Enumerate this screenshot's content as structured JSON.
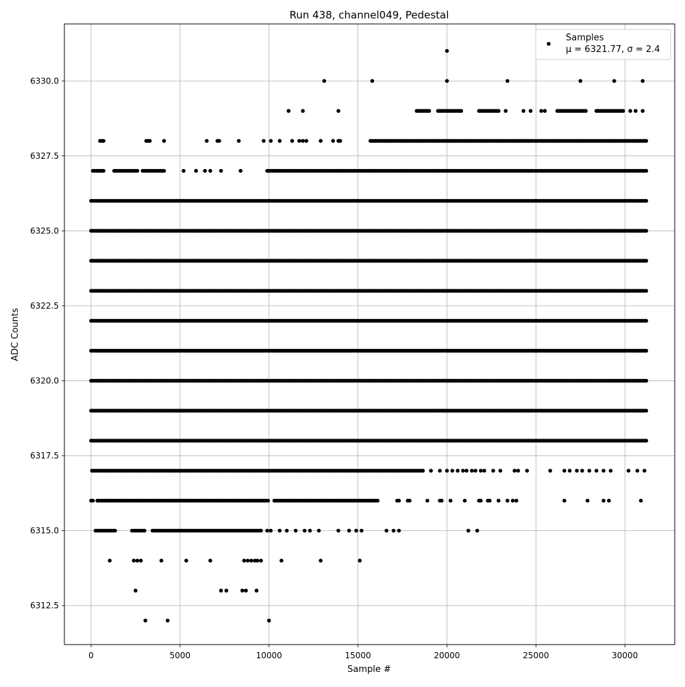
{
  "chart_data": {
    "type": "scatter",
    "title": "Run 438, channel049, Pedestal",
    "xlabel": "Sample #",
    "ylabel": "ADC Counts",
    "xlim": [
      -1500,
      32800
    ],
    "ylim": [
      6311.2,
      6331.9
    ],
    "grid": true,
    "legend_position": "top-right",
    "xticks": [
      0,
      5000,
      10000,
      15000,
      20000,
      25000,
      30000
    ],
    "xtick_labels": [
      "0",
      "5000",
      "10000",
      "15000",
      "20000",
      "25000",
      "30000"
    ],
    "yticks": [
      6312.5,
      6315.0,
      6317.5,
      6320.0,
      6322.5,
      6325.0,
      6327.5,
      6330.0
    ],
    "ytick_labels": [
      "6312.5",
      "6315.0",
      "6317.5",
      "6320.0",
      "6322.5",
      "6325.0",
      "6327.5",
      "6330.0"
    ],
    "series": [
      {
        "name": "Samples",
        "stats_label": "μ = 6321.77, σ = 2.4",
        "mean": 6321.77,
        "sigma": 2.4,
        "color": "#000000",
        "n_samples": 31200,
        "levels": [
          {
            "y": 6312,
            "x": [
              3050,
              4300,
              10000
            ]
          },
          {
            "y": 6313,
            "x": [
              2500,
              7300,
              7600,
              8500,
              8700,
              9300
            ]
          },
          {
            "y": 6314,
            "x": [
              1050,
              2400,
              2600,
              2800,
              3950,
              5350,
              6700,
              8600,
              8800,
              9000,
              9200,
              9350,
              9550,
              10700,
              12900,
              15100
            ]
          },
          {
            "y": 6330,
            "x": [
              13100,
              15800,
              20000,
              23400,
              27500,
              29400,
              31000
            ]
          },
          {
            "y": 6331,
            "x": [
              20000
            ]
          }
        ],
        "bands": [
          {
            "y": 6315,
            "ranges": [
              [
                250,
                1400
              ],
              [
                2300,
                3000
              ],
              [
                3450,
                9600
              ]
            ],
            "extra_x": [
              9900,
              10100,
              10600,
              11000,
              11500,
              12000,
              12300,
              12800,
              13900,
              14500,
              14900,
              15200,
              16600,
              17000,
              17300,
              21200,
              21700
            ]
          },
          {
            "y": 6316,
            "ranges": [
              [
                0,
                100
              ],
              [
                350,
                10000
              ],
              [
                10300,
                16100
              ]
            ],
            "extra_x": [
              17200,
              17300,
              17800,
              17900,
              18900,
              19600,
              19700,
              20200,
              21000,
              21800,
              21900,
              22300,
              22400,
              22900,
              23400,
              23700,
              23900,
              26600,
              27900,
              28800,
              29100,
              30900
            ]
          },
          {
            "y": 6317,
            "ranges": [
              [
                50,
                18700
              ]
            ],
            "extra_x": [
              19100,
              19600,
              20000,
              20300,
              20600,
              20900,
              21100,
              21400,
              21600,
              21900,
              22100,
              22600,
              23000,
              23800,
              24000,
              24500,
              25800,
              26600,
              26900,
              27300,
              27600,
              28000,
              28400,
              28800,
              29200,
              30200,
              30700,
              31100
            ]
          },
          {
            "y": 6318,
            "ranges": [
              [
                0,
                31200
              ]
            ],
            "extra_x": []
          },
          {
            "y": 6319,
            "ranges": [
              [
                0,
                31200
              ]
            ],
            "extra_x": []
          },
          {
            "y": 6320,
            "ranges": [
              [
                0,
                31200
              ]
            ],
            "extra_x": []
          },
          {
            "y": 6321,
            "ranges": [
              [
                0,
                31200
              ]
            ],
            "extra_x": []
          },
          {
            "y": 6322,
            "ranges": [
              [
                0,
                31200
              ]
            ],
            "extra_x": []
          },
          {
            "y": 6323,
            "ranges": [
              [
                0,
                31200
              ]
            ],
            "extra_x": []
          },
          {
            "y": 6324,
            "ranges": [
              [
                0,
                31200
              ]
            ],
            "extra_x": []
          },
          {
            "y": 6325,
            "ranges": [
              [
                0,
                31200
              ]
            ],
            "extra_x": []
          },
          {
            "y": 6326,
            "ranges": [
              [
                0,
                31200
              ]
            ],
            "extra_x": []
          },
          {
            "y": 6327,
            "ranges": [
              [
                100,
                700
              ],
              [
                1300,
                2600
              ],
              [
                2900,
                4100
              ],
              [
                9900,
                31200
              ]
            ],
            "extra_x": [
              5200,
              5900,
              6400,
              6700,
              7300,
              8400
            ]
          },
          {
            "y": 6328,
            "ranges": [
              [
                15700,
                31200
              ]
            ],
            "extra_x": [
              500,
              600,
              700,
              3100,
              3200,
              3300,
              4100,
              6500,
              7100,
              7200,
              8300,
              9700,
              10100,
              10600,
              11300,
              11700,
              11900,
              12100,
              12900,
              13600,
              13900,
              14000
            ]
          },
          {
            "y": 6329,
            "ranges": [
              [
                18300,
                19000
              ],
              [
                19500,
                20800
              ],
              [
                21800,
                22900
              ],
              [
                26200,
                27800
              ],
              [
                28400,
                29900
              ]
            ],
            "extra_x": [
              11100,
              11900,
              13900,
              23300,
              24300,
              24700,
              25300,
              25500,
              30300,
              30600,
              31000
            ]
          }
        ]
      }
    ]
  }
}
